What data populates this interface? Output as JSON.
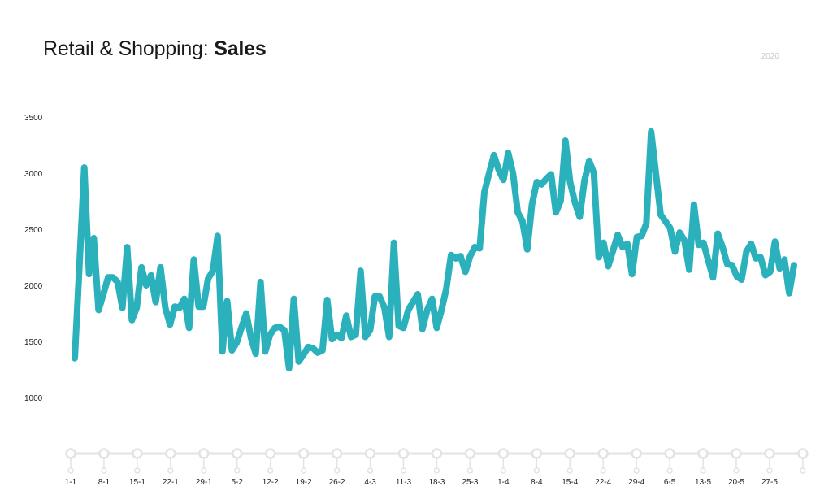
{
  "header": {
    "title_prefix": "Retail & Shopping: ",
    "title_bold": "Sales",
    "year": "2020"
  },
  "chart_data": {
    "type": "line",
    "title": "Retail & Shopping: Sales",
    "subtitle": "2020",
    "xlabel": "",
    "ylabel": "",
    "ylim": [
      1000,
      3500
    ],
    "grid": false,
    "line_color": "#2ab1bc",
    "y_ticks": [
      3500,
      3000,
      2500,
      2000,
      1500,
      1000
    ],
    "x_tick_labels": [
      "1-1",
      "8-1",
      "15-1",
      "22-1",
      "29-1",
      "5-2",
      "12-2",
      "19-2",
      "26-2",
      "4-3",
      "11-3",
      "18-3",
      "25-3",
      "1-4",
      "8-4",
      "15-4",
      "22-4",
      "29-4",
      "6-5",
      "13-5",
      "20-5",
      "27-5",
      ""
    ],
    "series": [
      {
        "name": "Sales",
        "values": [
          1350,
          2200,
          3050,
          2100,
          2420,
          1780,
          1920,
          2070,
          2070,
          2030,
          1800,
          2340,
          1690,
          1800,
          2160,
          2000,
          2090,
          1850,
          2160,
          1800,
          1650,
          1810,
          1800,
          1880,
          1620,
          2230,
          1810,
          1810,
          2060,
          2130,
          2440,
          1410,
          1860,
          1420,
          1490,
          1620,
          1750,
          1530,
          1390,
          2030,
          1410,
          1560,
          1620,
          1630,
          1600,
          1260,
          1880,
          1320,
          1380,
          1450,
          1440,
          1400,
          1420,
          1870,
          1520,
          1560,
          1530,
          1730,
          1540,
          1560,
          2130,
          1540,
          1600,
          1900,
          1900,
          1800,
          1540,
          2380,
          1640,
          1620,
          1780,
          1850,
          1920,
          1610,
          1780,
          1880,
          1620,
          1780,
          1970,
          2270,
          2240,
          2260,
          2120,
          2260,
          2340,
          2330,
          2830,
          3000,
          3160,
          3030,
          2940,
          3180,
          3000,
          2650,
          2570,
          2320,
          2720,
          2920,
          2900,
          2950,
          2990,
          2650,
          2750,
          3290,
          2920,
          2740,
          2610,
          2930,
          3110,
          3000,
          2250,
          2380,
          2170,
          2310,
          2450,
          2340,
          2370,
          2100,
          2430,
          2440,
          2550,
          3370,
          3000,
          2630,
          2570,
          2510,
          2300,
          2470,
          2400,
          2140,
          2720,
          2360,
          2380,
          2220,
          2070,
          2460,
          2340,
          2190,
          2180,
          2080,
          2050,
          2300,
          2370,
          2240,
          2250,
          2090,
          2120,
          2390,
          2150,
          2230,
          1930,
          2180
        ]
      }
    ]
  }
}
